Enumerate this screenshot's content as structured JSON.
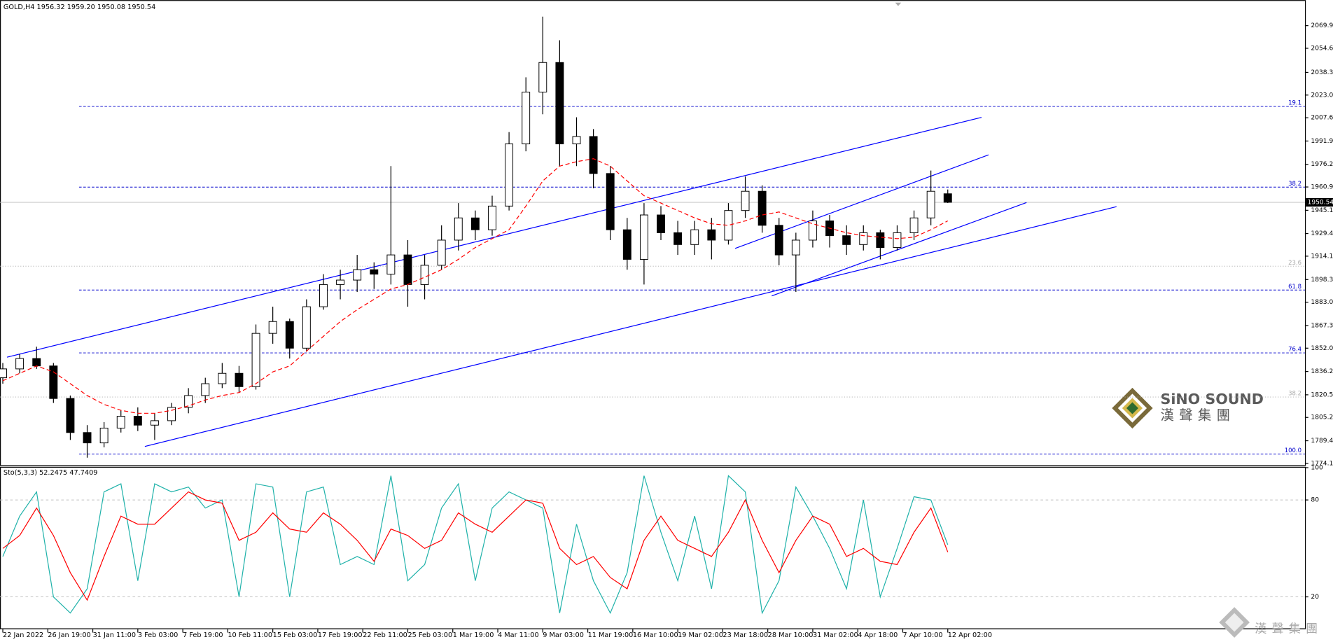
{
  "chart_data": [
    {
      "type": "candlestick",
      "title": "GOLD,H4  1956.32 1959.20 1950.08 1950.54",
      "x": [
        0,
        6,
        12,
        18,
        24,
        30,
        36,
        42,
        48,
        54,
        60,
        66,
        72,
        78,
        84,
        90,
        96,
        102,
        108,
        114,
        120,
        126,
        132,
        138,
        144,
        150,
        156,
        162,
        168,
        174,
        180,
        186,
        192,
        198,
        204,
        210,
        216,
        222,
        228,
        234,
        240,
        246,
        252,
        258,
        264,
        270,
        276,
        282,
        288,
        294,
        300,
        306,
        312,
        318,
        324,
        330,
        336
      ],
      "open": [
        1832,
        1838,
        1845,
        1840,
        1818,
        1795,
        1788,
        1798,
        1806,
        1800,
        1803,
        1812,
        1820,
        1828,
        1835,
        1826,
        1862,
        1870,
        1852,
        1880,
        1895,
        1898,
        1905,
        1902,
        1915,
        1895,
        1908,
        1925,
        1940,
        1932,
        1948,
        1990,
        2025,
        2045,
        1990,
        1995,
        1970,
        1932,
        1912,
        1942,
        1930,
        1922,
        1932,
        1925,
        1945,
        1958,
        1935,
        1915,
        1925,
        1938,
        1928,
        1922,
        1930,
        1920,
        1930,
        1940,
        1956.32
      ],
      "high": [
        1842,
        1848,
        1853,
        1842,
        1820,
        1800,
        1802,
        1810,
        1812,
        1808,
        1815,
        1825,
        1832,
        1842,
        1840,
        1868,
        1880,
        1872,
        1885,
        1902,
        1905,
        1915,
        1910,
        1975,
        1925,
        1915,
        1935,
        1950,
        1945,
        1955,
        1998,
        2035,
        2076,
        2060,
        2008,
        2000,
        1975,
        1940,
        1950,
        1948,
        1938,
        1938,
        1940,
        1950,
        1968,
        1962,
        1940,
        1930,
        1945,
        1942,
        1935,
        1935,
        1932,
        1935,
        1945,
        1972,
        1959.2
      ],
      "low": [
        1828,
        1835,
        1838,
        1815,
        1790,
        1778,
        1785,
        1795,
        1796,
        1790,
        1800,
        1808,
        1815,
        1825,
        1822,
        1824,
        1855,
        1845,
        1850,
        1878,
        1885,
        1890,
        1892,
        1895,
        1880,
        1885,
        1905,
        1918,
        1925,
        1928,
        1945,
        1985,
        2010,
        1975,
        1975,
        1960,
        1925,
        1905,
        1895,
        1925,
        1915,
        1915,
        1912,
        1922,
        1940,
        1930,
        1908,
        1890,
        1920,
        1920,
        1915,
        1918,
        1912,
        1918,
        1925,
        1935,
        1950.08
      ],
      "close": [
        1838,
        1845,
        1840,
        1818,
        1795,
        1788,
        1798,
        1806,
        1800,
        1803,
        1812,
        1820,
        1828,
        1835,
        1826,
        1862,
        1870,
        1852,
        1880,
        1895,
        1898,
        1905,
        1902,
        1915,
        1895,
        1908,
        1925,
        1940,
        1932,
        1948,
        1990,
        2025,
        2045,
        1990,
        1995,
        1970,
        1932,
        1912,
        1942,
        1930,
        1922,
        1932,
        1925,
        1945,
        1958,
        1935,
        1915,
        1925,
        1938,
        1928,
        1922,
        1930,
        1920,
        1930,
        1940,
        1958,
        1950.54
      ],
      "up_color": "#ffffff",
      "down_color": "#000000",
      "wick_color": "#000000",
      "ma": {
        "color": "#ff0000",
        "values": [
          1830,
          1835,
          1840,
          1836,
          1828,
          1820,
          1814,
          1810,
          1808,
          1808,
          1810,
          1813,
          1817,
          1820,
          1822,
          1828,
          1836,
          1840,
          1850,
          1860,
          1870,
          1878,
          1885,
          1892,
          1895,
          1900,
          1905,
          1912,
          1920,
          1926,
          1932,
          1948,
          1965,
          1975,
          1978,
          1980,
          1975,
          1965,
          1955,
          1950,
          1945,
          1940,
          1936,
          1935,
          1938,
          1942,
          1944,
          1940,
          1936,
          1933,
          1930,
          1928,
          1927,
          1926,
          1927,
          1932,
          1938
        ]
      },
      "levels": [
        {
          "label": "19.1",
          "value": 2015.3,
          "color": "#0000cc"
        },
        {
          "label": "38.2",
          "value": 1960.8,
          "color": "#0000cc"
        },
        {
          "label": "23.6",
          "value": 1907.4,
          "color": "#aaaaaa"
        },
        {
          "label": "61.8",
          "value": 1891.3,
          "color": "#0000cc"
        },
        {
          "label": "76.4",
          "value": 1848.8,
          "color": "#0000cc"
        },
        {
          "label": "38.2",
          "value": 1819.0,
          "color": "#aaaaaa"
        },
        {
          "label": "100.0",
          "value": 1780.5,
          "color": "#0000cc"
        }
      ],
      "trendlines": [
        {
          "color": "#0000ff",
          "x": [
            1.5,
            348
          ],
          "y": [
            1845.9,
            2007.9
          ]
        },
        {
          "color": "#0000ff",
          "x": [
            50.5,
            396
          ],
          "y": [
            1785.6,
            1947.6
          ]
        },
        {
          "color": "#0000ff",
          "x": [
            273.4,
            364
          ],
          "y": [
            1887.3,
            1950.4
          ]
        },
        {
          "color": "#0000ff",
          "x": [
            260.4,
            350.5
          ],
          "y": [
            1919.4,
            1982.6
          ]
        }
      ],
      "last_price": 1950.54,
      "xlim": [
        -1,
        463
      ],
      "ylim": [
        1773,
        2086.6
      ],
      "yticks": [
        {
          "value": 2069.9,
          "label": "2069.90"
        },
        {
          "value": 2054.6,
          "label": "2054.60"
        },
        {
          "value": 2038.3,
          "label": "2038.30"
        },
        {
          "value": 2023,
          "label": "2023.00"
        },
        {
          "value": 2007.65,
          "label": "2007.65"
        },
        {
          "value": 1991.95,
          "label": "1991.95"
        },
        {
          "value": 1976.2,
          "label": "1976.20"
        },
        {
          "value": 1960.9,
          "label": "1960.90"
        },
        {
          "value": 1945.15,
          "label": "1945.15"
        },
        {
          "value": 1929.45,
          "label": "1929.45"
        },
        {
          "value": 1914.15,
          "label": "1914.15"
        },
        {
          "value": 1898.35,
          "label": "1898.35"
        },
        {
          "value": 1883.05,
          "label": "1883.05"
        },
        {
          "value": 1867.3,
          "label": "1867.30"
        },
        {
          "value": 1852,
          "label": "1852.00"
        },
        {
          "value": 1836.25,
          "label": "1836.25"
        },
        {
          "value": 1820.5,
          "label": "1820.50"
        },
        {
          "value": 1805.2,
          "label": "1805.20"
        },
        {
          "value": 1789.45,
          "label": "1789.45"
        },
        {
          "value": 1774.15,
          "label": "1774.15"
        }
      ],
      "xticks": [
        {
          "value": 0,
          "label": "22 Jan 2022"
        },
        {
          "value": 16,
          "label": "26 Jan 19:00"
        },
        {
          "value": 32,
          "label": "31 Jan 11:00"
        },
        {
          "value": 48,
          "label": "3 Feb 03:00"
        },
        {
          "value": 64,
          "label": "7 Feb 19:00"
        },
        {
          "value": 80,
          "label": "10 Feb 11:00"
        },
        {
          "value": 96,
          "label": "15 Feb 03:00"
        },
        {
          "value": 112,
          "label": "17 Feb 19:00"
        },
        {
          "value": 128,
          "label": "22 Feb 11:00"
        },
        {
          "value": 144,
          "label": "25 Feb 03:00"
        },
        {
          "value": 160,
          "label": "1 Mar 19:00"
        },
        {
          "value": 176,
          "label": "4 Mar 11:00"
        },
        {
          "value": 192,
          "label": "9 Mar 03:00"
        },
        {
          "value": 208,
          "label": "11 Mar 19:00"
        },
        {
          "value": 224,
          "label": "16 Mar 10:00"
        },
        {
          "value": 240,
          "label": "19 Mar 02:00"
        },
        {
          "value": 256,
          "label": "23 Mar 18:00"
        },
        {
          "value": 272,
          "label": "28 Mar 10:00"
        },
        {
          "value": 288,
          "label": "31 Mar 02:00"
        },
        {
          "value": 304,
          "label": "4 Apr 18:00"
        },
        {
          "value": 320,
          "label": "7 Apr 10:00"
        },
        {
          "value": 336,
          "label": "12 Apr 02:00"
        }
      ],
      "logo": {
        "name": "SiNO SOUND",
        "subtitle": "漢聲集團"
      },
      "watermark": "漢聲集團"
    },
    {
      "type": "line",
      "title": "Sto(5,3,3) 52.2475 47.7409",
      "x": [
        0,
        6,
        12,
        18,
        24,
        30,
        36,
        42,
        48,
        54,
        60,
        66,
        72,
        78,
        84,
        90,
        96,
        102,
        108,
        114,
        120,
        126,
        132,
        138,
        144,
        150,
        156,
        162,
        168,
        174,
        180,
        186,
        192,
        198,
        204,
        210,
        216,
        222,
        228,
        234,
        240,
        246,
        252,
        258,
        264,
        270,
        276,
        282,
        288,
        294,
        300,
        306,
        312,
        318,
        324,
        330,
        336
      ],
      "series": [
        {
          "name": "Main",
          "color": "#20b2aa",
          "values": [
            45,
            70,
            85,
            20,
            10,
            25,
            85,
            90,
            30,
            90,
            85,
            88,
            75,
            80,
            20,
            90,
            88,
            20,
            85,
            88,
            40,
            45,
            40,
            95,
            30,
            40,
            75,
            90,
            30,
            75,
            85,
            80,
            75,
            10,
            65,
            30,
            10,
            35,
            95,
            60,
            30,
            70,
            25,
            95,
            85,
            10,
            30,
            88,
            70,
            50,
            25,
            80,
            20,
            50,
            82,
            80,
            52.2475
          ]
        },
        {
          "name": "Signal",
          "color": "#ff0000",
          "values": [
            50,
            58,
            75,
            58,
            35,
            18,
            45,
            70,
            65,
            65,
            75,
            85,
            80,
            78,
            55,
            60,
            72,
            62,
            60,
            72,
            65,
            55,
            42,
            62,
            58,
            50,
            55,
            72,
            65,
            60,
            70,
            80,
            78,
            50,
            40,
            45,
            32,
            25,
            55,
            70,
            55,
            50,
            45,
            60,
            80,
            55,
            35,
            55,
            70,
            65,
            45,
            50,
            42,
            40,
            60,
            75,
            47.7409
          ]
        }
      ],
      "xlim": [
        -1,
        463
      ],
      "ylim": [
        0,
        100
      ],
      "yticks": [
        20,
        80,
        100
      ]
    }
  ]
}
